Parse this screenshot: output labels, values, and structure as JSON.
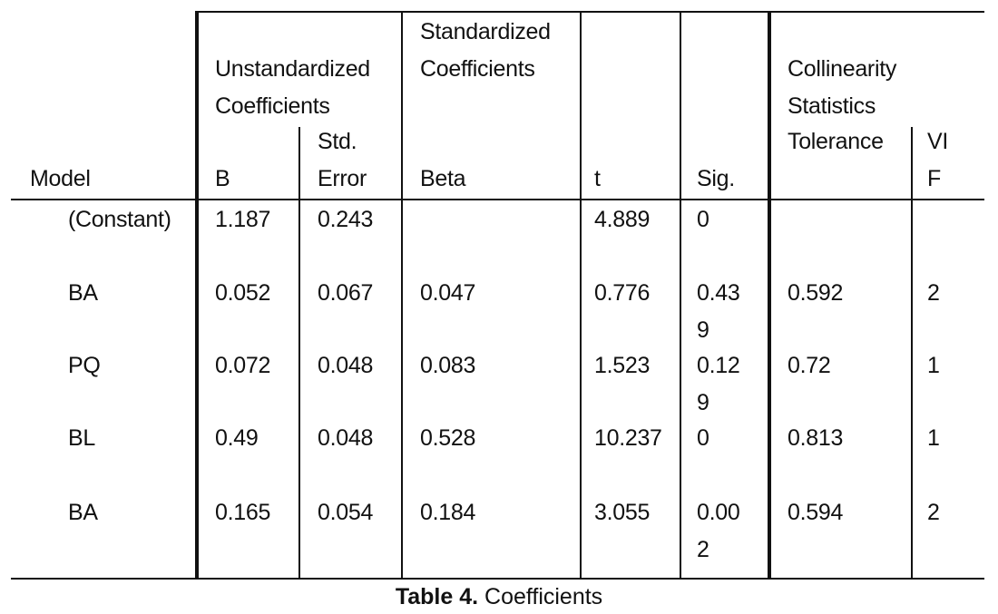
{
  "table": {
    "groups": [
      "Unstandardized Coefficients",
      "Standardized Coefficients",
      "Collinearity Statistics"
    ],
    "columns": [
      "Model",
      "B",
      "Std. Error",
      "Beta",
      "t",
      "Sig.",
      "Tolerance",
      "VIF"
    ],
    "rows": [
      [
        "(Constant)",
        "1.187",
        "0.243",
        null,
        "4.889",
        "0",
        null,
        null
      ],
      [
        "BA",
        "0.052",
        "0.067",
        "0.047",
        "0.776",
        "0.439",
        "0.592",
        "2"
      ],
      [
        "PQ",
        "0.072",
        "0.048",
        "0.083",
        "1.523",
        "0.129",
        "0.72",
        "1"
      ],
      [
        "BL",
        "0.49",
        "0.048",
        "0.528",
        "10.237",
        "0",
        "0.813",
        "1"
      ],
      [
        "BA",
        "0.165",
        "0.054",
        "0.184",
        "3.055",
        "0.002",
        "0.594",
        "2"
      ]
    ]
  },
  "caption": {
    "label": "Table 4.",
    "text": "Coefficients"
  }
}
